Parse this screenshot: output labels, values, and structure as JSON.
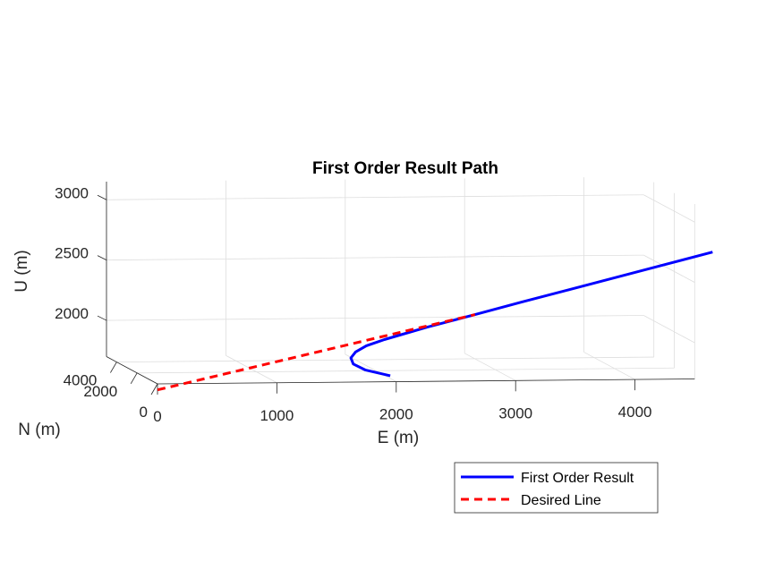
{
  "chart_data": {
    "type": "line",
    "projection": "3d",
    "title": "First Order Result Path",
    "xlabel": "E (m)",
    "ylabel": "N (m)",
    "zlabel": "U (m)",
    "xlim": [
      0,
      4500
    ],
    "ylim": [
      0,
      5000
    ],
    "zlim": [
      1700,
      3150
    ],
    "x_ticks": [
      "0",
      "1000",
      "2000",
      "3000",
      "4000"
    ],
    "y_ticks": [
      "0",
      "2000",
      "4000"
    ],
    "z_ticks": [
      "2000",
      "2500",
      "3000"
    ],
    "grid": true,
    "legend_position": "bottom-right",
    "series": [
      {
        "name": "First Order Result",
        "color": "#0000ff",
        "style": "solid",
        "points": [
          [
            1950,
            0,
            1750
          ],
          [
            1740,
            0,
            1800
          ],
          [
            1640,
            0,
            1850
          ],
          [
            1620,
            0,
            1900
          ],
          [
            1660,
            0,
            1950
          ],
          [
            1750,
            0,
            2000
          ],
          [
            1900,
            0,
            2050
          ],
          [
            2080,
            0,
            2100
          ],
          [
            2260,
            0,
            2150
          ],
          [
            2460,
            0,
            2200
          ],
          [
            2660,
            0,
            2250
          ],
          [
            3050,
            0,
            2350
          ],
          [
            3450,
            0,
            2450
          ],
          [
            3850,
            0,
            2550
          ],
          [
            4250,
            0,
            2650
          ],
          [
            4650,
            0,
            2750
          ]
        ]
      },
      {
        "name": "Desired Line",
        "color": "#ff0000",
        "style": "dashed",
        "points": [
          [
            0,
            0,
            1650
          ],
          [
            2660,
            0,
            2250
          ]
        ]
      }
    ]
  }
}
